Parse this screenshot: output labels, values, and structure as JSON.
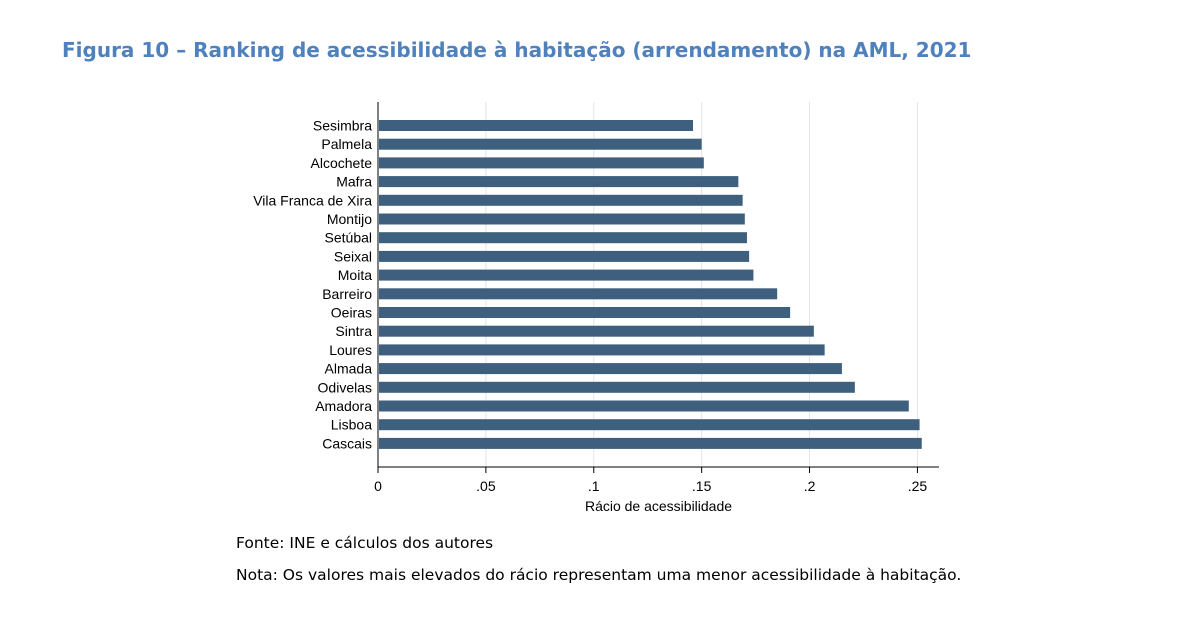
{
  "figure": {
    "title": "Figura 10 – Ranking de acessibilidade à habitação (arrendamento) na AML, 2021",
    "source": "Fonte: INE e cálculos dos autores",
    "note": "Nota: Os valores mais elevados do rácio representam uma menor acessibilidade à habitação."
  },
  "colors": {
    "title": "#4f81bd",
    "bar": "#3e5f7d",
    "grid": "#e4e4e4",
    "axis": "#000000"
  },
  "chart_data": {
    "type": "bar",
    "orientation": "horizontal",
    "title": "",
    "xlabel": "Rácio de acessibilidade",
    "ylabel": "",
    "xlim": [
      0,
      0.26
    ],
    "ticks": [
      0,
      0.05,
      0.1,
      0.15,
      0.2,
      0.25
    ],
    "tick_labels": [
      "0",
      ".05",
      ".1",
      ".15",
      ".2",
      ".25"
    ],
    "grid": true,
    "categories": [
      "Sesimbra",
      "Palmela",
      "Alcochete",
      "Mafra",
      "Vila Franca de Xira",
      "Montijo",
      "Setúbal",
      "Seixal",
      "Moita",
      "Barreiro",
      "Oeiras",
      "Sintra",
      "Loures",
      "Almada",
      "Odivelas",
      "Amadora",
      "Lisboa",
      "Cascais"
    ],
    "values": [
      0.146,
      0.15,
      0.151,
      0.167,
      0.169,
      0.17,
      0.171,
      0.172,
      0.174,
      0.185,
      0.191,
      0.202,
      0.207,
      0.215,
      0.221,
      0.246,
      0.251,
      0.252
    ]
  }
}
